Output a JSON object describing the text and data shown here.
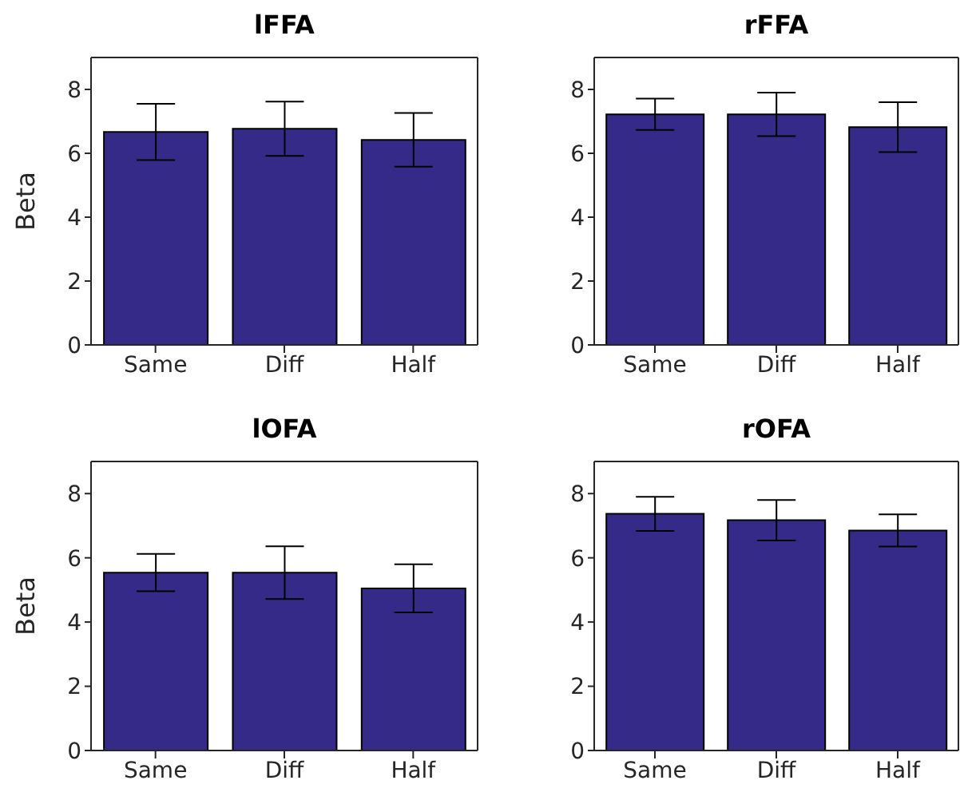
{
  "chart_data": [
    {
      "type": "bar",
      "title": "lFFA",
      "ylabel": "Beta",
      "categories": [
        "Same",
        "Diff",
        "Half"
      ],
      "values": [
        6.67,
        6.77,
        6.42
      ],
      "errors": [
        0.88,
        0.85,
        0.84
      ],
      "color": "#352a87",
      "ylim": [
        0,
        9
      ],
      "yticks": [
        0,
        2,
        4,
        6,
        8
      ],
      "grid": false,
      "legend": false
    },
    {
      "type": "bar",
      "title": "rFFA",
      "categories": [
        "Same",
        "Diff",
        "Half"
      ],
      "values": [
        7.22,
        7.22,
        6.82
      ],
      "errors": [
        0.49,
        0.68,
        0.78
      ],
      "color": "#352a87",
      "ylim": [
        0,
        9
      ],
      "yticks": [
        0,
        2,
        4,
        6,
        8
      ],
      "grid": false,
      "legend": false
    },
    {
      "type": "bar",
      "title": "lOFA",
      "ylabel": "Beta",
      "categories": [
        "Same",
        "Diff",
        "Half"
      ],
      "values": [
        5.54,
        5.54,
        5.05
      ],
      "errors": [
        0.58,
        0.82,
        0.75
      ],
      "color": "#352a87",
      "ylim": [
        0,
        9
      ],
      "yticks": [
        0,
        2,
        4,
        6,
        8
      ],
      "grid": false,
      "legend": false
    },
    {
      "type": "bar",
      "title": "rOFA",
      "categories": [
        "Same",
        "Diff",
        "Half"
      ],
      "values": [
        7.37,
        7.17,
        6.85
      ],
      "errors": [
        0.53,
        0.63,
        0.5
      ],
      "color": "#352a87",
      "ylim": [
        0,
        9
      ],
      "yticks": [
        0,
        2,
        4,
        6,
        8
      ],
      "grid": false,
      "legend": false
    }
  ]
}
